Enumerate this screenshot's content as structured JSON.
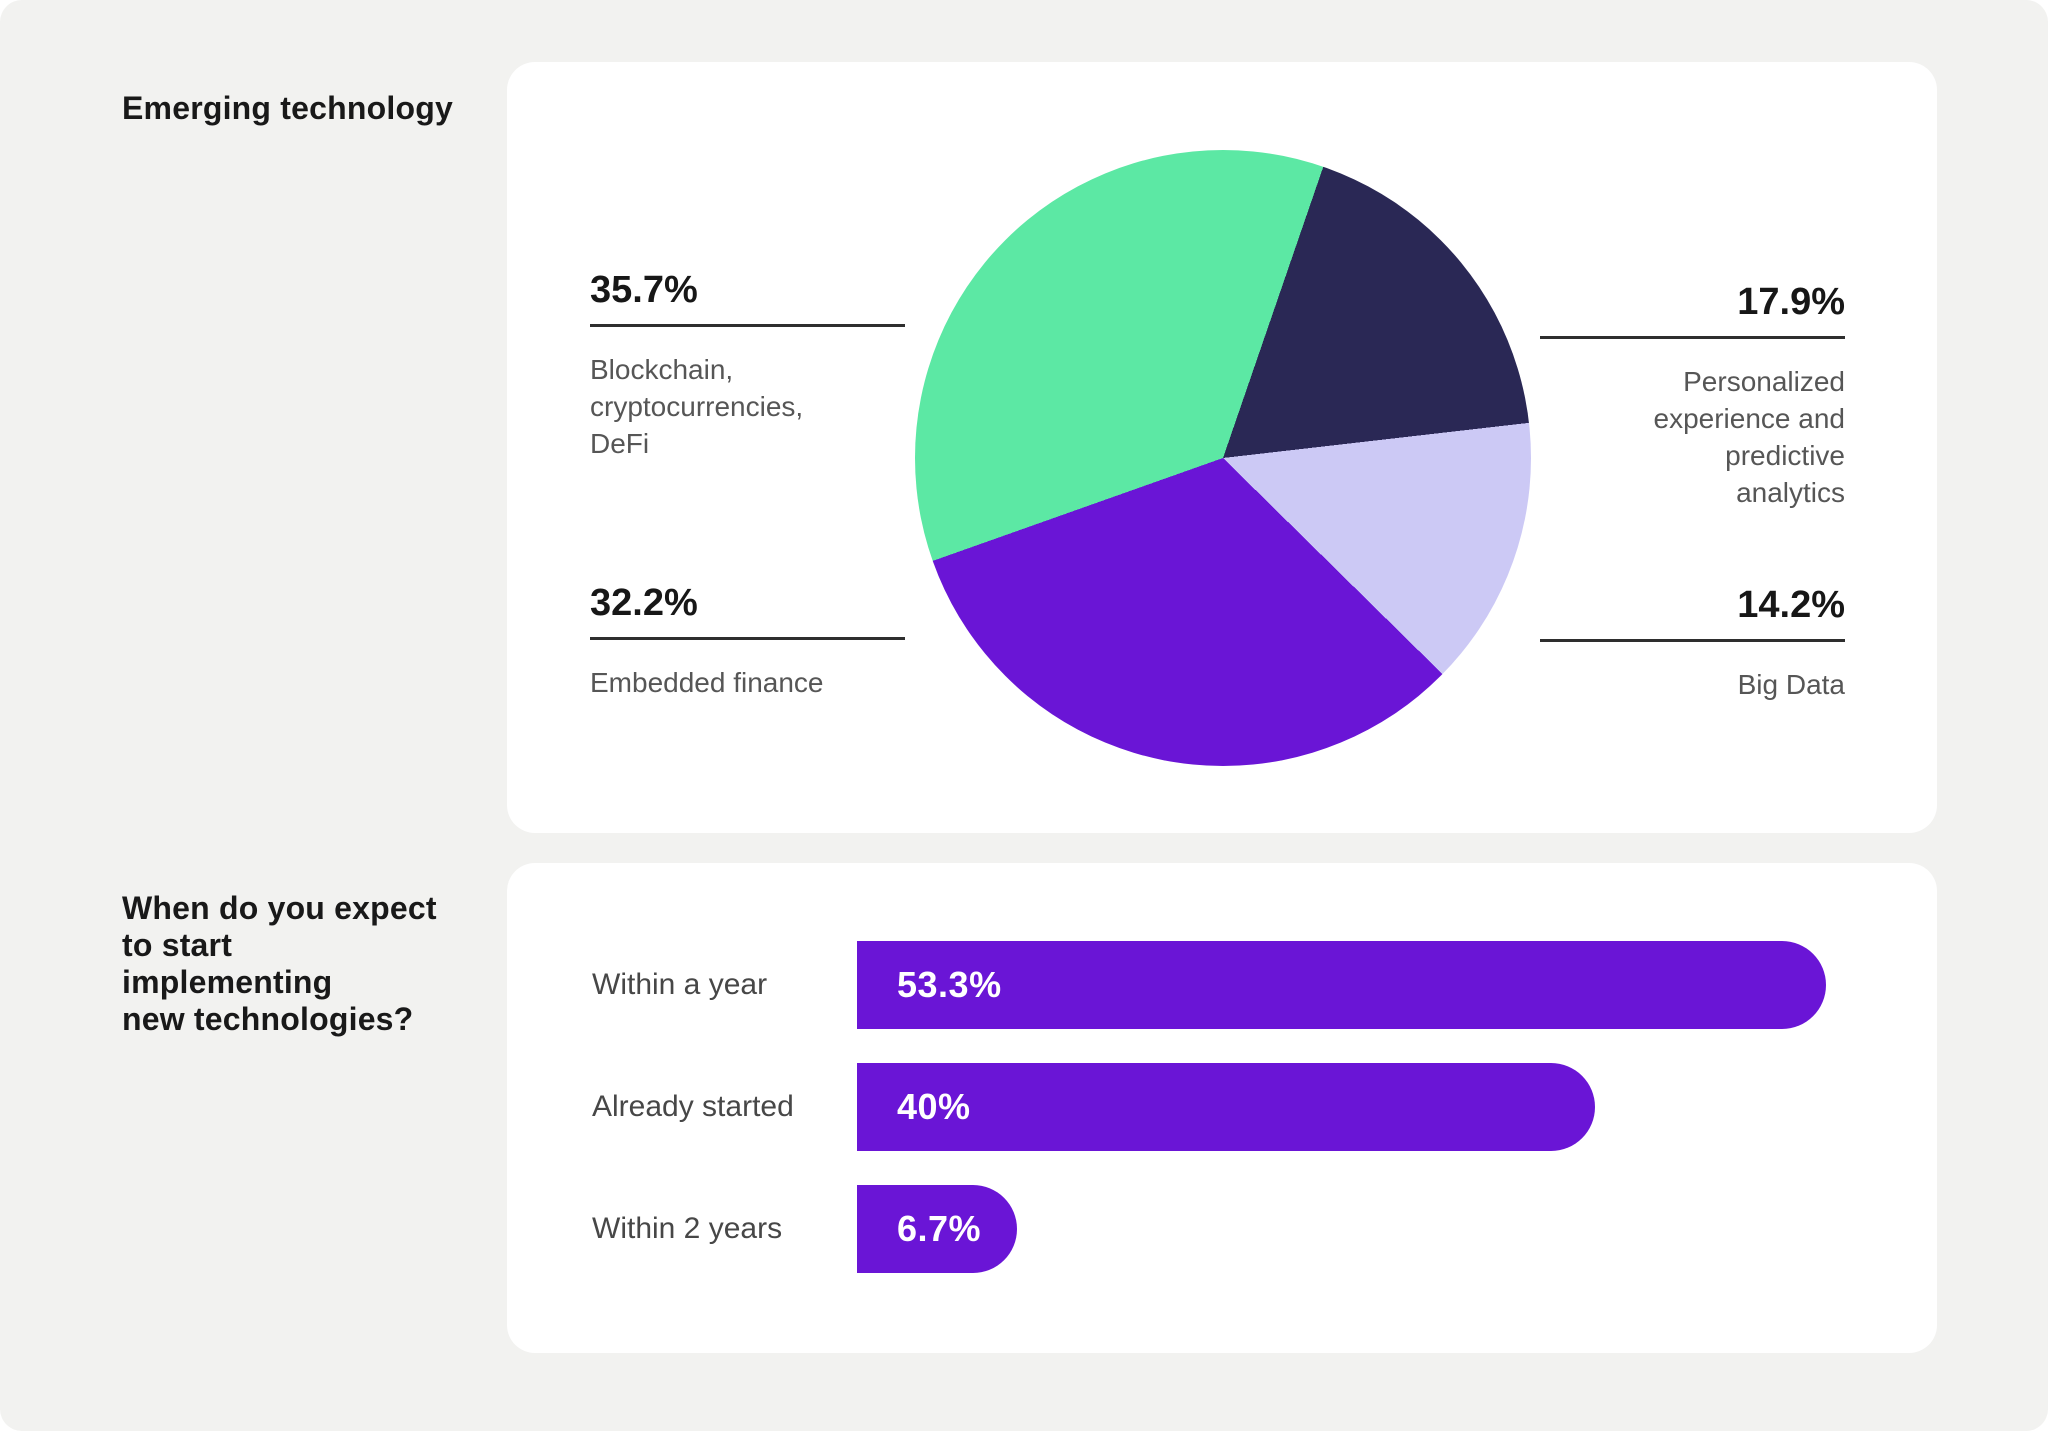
{
  "page": {
    "background": "#F2F2F0",
    "card_background": "#FFFFFF",
    "accent_purple": "#6A15D6"
  },
  "sections": [
    {
      "heading": "Emerging technology"
    },
    {
      "heading": "When do you expect to start implementing new technologies?",
      "heading_lines": "When do you expect\nto start\nimplementing\nnew technologies?"
    }
  ],
  "chart_data": [
    {
      "type": "pie",
      "title": "Emerging technology",
      "start_angle_deg": 19,
      "direction": "clockwise",
      "legend": false,
      "slices": [
        {
          "label": "Personalized experience and predictive analytics",
          "label_lines": "Personalized\nexperience and\npredictive\nanalytics",
          "value": 17.9,
          "value_label": "17.9%",
          "color": "#2A2855",
          "label_side": "right-top"
        },
        {
          "label": "Big Data",
          "label_lines": "Big Data",
          "value": 14.2,
          "value_label": "14.2%",
          "color": "#CCC9F5",
          "label_side": "right-bottom"
        },
        {
          "label": "Embedded finance",
          "label_lines": "Embedded finance",
          "value": 32.2,
          "value_label": "32.2%",
          "color": "#6A15D6",
          "label_side": "left-bottom"
        },
        {
          "label": "Blockchain, cryptocurrencies, DeFi",
          "label_lines": "Blockchain,\ncryptocurrencies,\nDeFi",
          "value": 35.7,
          "value_label": "35.7%",
          "color": "#5CE8A4",
          "label_side": "left-top"
        }
      ]
    },
    {
      "type": "bar",
      "orientation": "horizontal",
      "title": "When do you expect to start implementing new technologies?",
      "categories": [
        "Within a year",
        "Already started",
        "Within 2 years"
      ],
      "values": [
        53.3,
        40,
        6.7
      ],
      "value_labels": [
        "53.3%",
        "40%",
        "6.7%"
      ],
      "bar_color": "#6A15D6",
      "xlim": [
        0,
        57
      ],
      "grid": false,
      "legend": false
    }
  ]
}
